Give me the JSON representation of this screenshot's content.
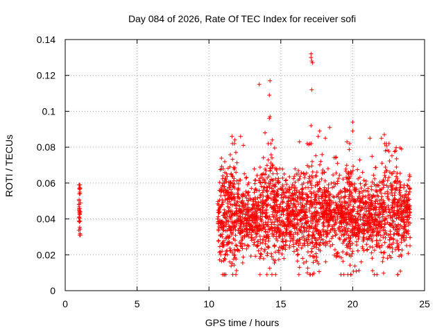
{
  "chart_data": {
    "type": "scatter",
    "title": "Day 084 of 2026, Rate Of TEC Index for receiver sofi",
    "xlabel": "GPS time / hours",
    "ylabel": "ROTI / TECUs",
    "xlim": [
      0,
      25
    ],
    "ylim": [
      0,
      0.14
    ],
    "x_ticks": [
      0,
      5,
      10,
      15,
      20,
      25
    ],
    "x_tick_labels": [
      "0",
      "5",
      "10",
      "15",
      "20",
      "25"
    ],
    "y_ticks": [
      0,
      0.02,
      0.04,
      0.06,
      0.08,
      0.1,
      0.12,
      0.14
    ],
    "y_tick_labels": [
      "0",
      "0.02",
      "0.04",
      "0.06",
      "0.08",
      "0.1",
      "0.12",
      "0.14"
    ],
    "grid": true,
    "marker": "+",
    "series": [
      {
        "name": "ROTI",
        "color": "#ff0000",
        "marker": "+",
        "clusters": [
          {
            "x_range": [
              0.95,
              1.05
            ],
            "y_center": 0.044,
            "y_spread": 0.008,
            "y_min": 0.031,
            "y_max": 0.059,
            "count": 40
          },
          {
            "x_range": [
              10.6,
              24.0
            ],
            "y_center": 0.042,
            "y_spread": 0.013,
            "y_min": 0.009,
            "y_max": 0.082,
            "count": 2600
          }
        ],
        "highlights": [
          {
            "x": 17.1,
            "y": 0.132
          },
          {
            "x": 17.1,
            "y": 0.13
          },
          {
            "x": 17.15,
            "y": 0.128
          },
          {
            "x": 17.2,
            "y": 0.127
          },
          {
            "x": 17.15,
            "y": 0.112
          },
          {
            "x": 14.25,
            "y": 0.117
          },
          {
            "x": 13.5,
            "y": 0.115
          },
          {
            "x": 14.2,
            "y": 0.109
          },
          {
            "x": 14.25,
            "y": 0.097
          },
          {
            "x": 14.2,
            "y": 0.096
          },
          {
            "x": 20.0,
            "y": 0.094
          },
          {
            "x": 17.1,
            "y": 0.092
          },
          {
            "x": 18.4,
            "y": 0.091
          },
          {
            "x": 20.0,
            "y": 0.089
          },
          {
            "x": 17.7,
            "y": 0.089
          },
          {
            "x": 13.9,
            "y": 0.088
          },
          {
            "x": 22.2,
            "y": 0.087
          },
          {
            "x": 11.6,
            "y": 0.086
          },
          {
            "x": 12.2,
            "y": 0.086
          },
          {
            "x": 17.6,
            "y": 0.086
          },
          {
            "x": 18.1,
            "y": 0.085
          },
          {
            "x": 21.2,
            "y": 0.085
          },
          {
            "x": 22.0,
            "y": 0.085
          },
          {
            "x": 11.8,
            "y": 0.084
          },
          {
            "x": 14.4,
            "y": 0.084
          },
          {
            "x": 16.3,
            "y": 0.083
          },
          {
            "x": 19.6,
            "y": 0.083
          },
          {
            "x": 23.4,
            "y": 0.079
          },
          {
            "x": 12.4,
            "y": 0.081
          }
        ]
      }
    ]
  }
}
